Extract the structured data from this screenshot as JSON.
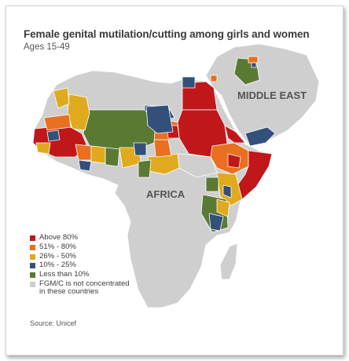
{
  "title": "Female genital mutilation/cutting among girls and women",
  "subtitle": "Ages 15-49",
  "region_labels": {
    "middle_east": "MIDDLE EAST",
    "africa": "AFRICA"
  },
  "legend": [
    {
      "label": "Above 80%",
      "color": "#c0171b"
    },
    {
      "label": "51% - 80%",
      "color": "#e8701f"
    },
    {
      "label": "26% - 50%",
      "color": "#e0aa1e"
    },
    {
      "label": "10% - 25%",
      "color": "#34507a"
    },
    {
      "label": "Less than 10%",
      "color": "#5a7a34"
    },
    {
      "label": "FGM/C is not concentrated\nin these countries",
      "color": "#cfcfcf"
    }
  ],
  "source": "Source: Unicef",
  "colors": {
    "land": "#cfcfcf",
    "border": "#ffffff",
    "above_80": "#c0171b",
    "p51_80": "#e8701f",
    "p26_50": "#e0aa1e",
    "p10_25": "#34507a",
    "less_10": "#5a7a34"
  }
}
